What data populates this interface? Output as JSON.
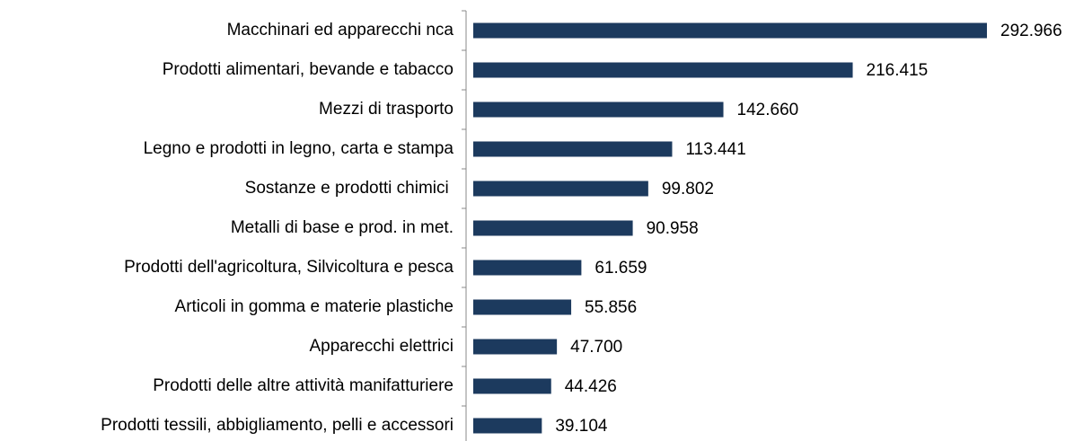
{
  "chart_data": {
    "type": "bar",
    "orientation": "horizontal",
    "categories": [
      "Macchinari ed apparecchi nca",
      "Prodotti alimentari, bevande e tabacco",
      "Mezzi di trasporto",
      "Legno e prodotti in legno, carta e stampa",
      "Sostanze e prodotti chimici ",
      "Metalli di base e prod. in met.",
      "Prodotti dell'agricoltura, Silvicoltura e pesca",
      "Articoli in gomma e materie plastiche",
      "Apparecchi elettrici",
      "Prodotti delle altre attività manifatturiere",
      "Prodotti tessili, abbigliamento, pelli e accessori"
    ],
    "values": [
      292966,
      216415,
      142660,
      113441,
      99802,
      90958,
      61659,
      55856,
      47700,
      44426,
      39104
    ],
    "value_labels": [
      "292.966",
      "216.415",
      "142.660",
      "113.441",
      "99.802",
      "90.958",
      "61.659",
      "55.856",
      "47.700",
      "44.426",
      "39.104"
    ],
    "color": "#1c3a5e"
  }
}
